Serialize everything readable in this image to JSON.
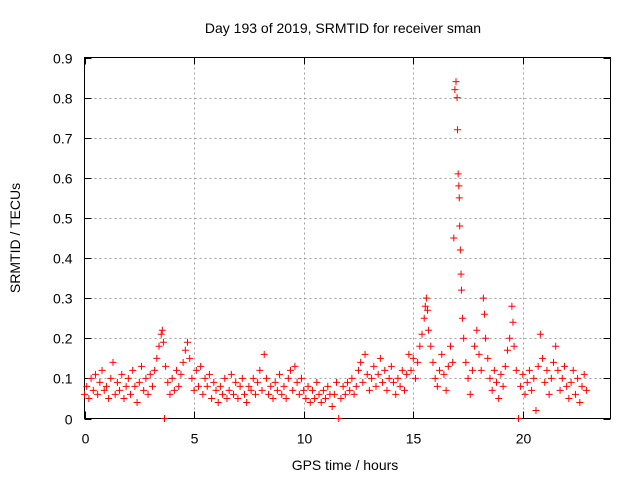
{
  "chart_data": {
    "type": "scatter",
    "title": "Day 193 of 2019, SRMTID for receiver sman",
    "xlabel": "GPS time / hours",
    "ylabel": "SRMTID / TECUs",
    "xlim": [
      0,
      24
    ],
    "ylim": [
      0,
      0.9
    ],
    "x_ticks": [
      0,
      5,
      10,
      15,
      20
    ],
    "x_tick_labels": [
      "0",
      "5",
      "10",
      "15",
      "20"
    ],
    "y_ticks": [
      0,
      0.1,
      0.2,
      0.3,
      0.4,
      0.5,
      0.6,
      0.7,
      0.8,
      0.9
    ],
    "y_tick_labels": [
      "0",
      "0.1",
      "0.2",
      "0.3",
      "0.4",
      "0.5",
      "0.6",
      "0.7",
      "0.8",
      "0.9"
    ],
    "grid": true,
    "marker": "+",
    "marker_color": "#ff0000",
    "series": [
      {
        "name": "SRMTID",
        "points": [
          [
            0.0,
            0.06
          ],
          [
            0.1,
            0.08
          ],
          [
            0.2,
            0.05
          ],
          [
            0.3,
            0.1
          ],
          [
            0.4,
            0.07
          ],
          [
            0.5,
            0.11
          ],
          [
            0.6,
            0.06
          ],
          [
            0.7,
            0.09
          ],
          [
            0.8,
            0.12
          ],
          [
            0.9,
            0.07
          ],
          [
            1.0,
            0.08
          ],
          [
            1.1,
            0.05
          ],
          [
            1.2,
            0.1
          ],
          [
            1.3,
            0.14
          ],
          [
            1.4,
            0.06
          ],
          [
            1.5,
            0.09
          ],
          [
            1.6,
            0.07
          ],
          [
            1.7,
            0.11
          ],
          [
            1.8,
            0.05
          ],
          [
            1.9,
            0.08
          ],
          [
            2.0,
            0.1
          ],
          [
            2.1,
            0.06
          ],
          [
            2.2,
            0.12
          ],
          [
            2.3,
            0.08
          ],
          [
            2.4,
            0.04
          ],
          [
            2.5,
            0.09
          ],
          [
            2.6,
            0.13
          ],
          [
            2.7,
            0.07
          ],
          [
            2.8,
            0.1
          ],
          [
            2.9,
            0.06
          ],
          [
            3.0,
            0.11
          ],
          [
            3.1,
            0.08
          ],
          [
            3.2,
            0.12
          ],
          [
            3.3,
            0.15
          ],
          [
            3.4,
            0.18
          ],
          [
            3.5,
            0.21
          ],
          [
            3.55,
            0.22
          ],
          [
            3.6,
            0.19
          ],
          [
            3.65,
            0.0
          ],
          [
            3.7,
            0.13
          ],
          [
            3.8,
            0.09
          ],
          [
            3.9,
            0.06
          ],
          [
            4.0,
            0.1
          ],
          [
            4.1,
            0.07
          ],
          [
            4.2,
            0.12
          ],
          [
            4.3,
            0.08
          ],
          [
            4.4,
            0.11
          ],
          [
            4.5,
            0.14
          ],
          [
            4.6,
            0.17
          ],
          [
            4.7,
            0.19
          ],
          [
            4.8,
            0.15
          ],
          [
            4.9,
            0.1
          ],
          [
            5.0,
            0.07
          ],
          [
            5.1,
            0.12
          ],
          [
            5.2,
            0.08
          ],
          [
            5.3,
            0.13
          ],
          [
            5.4,
            0.06
          ],
          [
            5.5,
            0.1
          ],
          [
            5.6,
            0.08
          ],
          [
            5.7,
            0.11
          ],
          [
            5.8,
            0.05
          ],
          [
            5.9,
            0.09
          ],
          [
            6.0,
            0.07
          ],
          [
            6.1,
            0.04
          ],
          [
            6.2,
            0.08
          ],
          [
            6.3,
            0.06
          ],
          [
            6.4,
            0.1
          ],
          [
            6.5,
            0.05
          ],
          [
            6.6,
            0.07
          ],
          [
            6.7,
            0.11
          ],
          [
            6.8,
            0.06
          ],
          [
            6.9,
            0.09
          ],
          [
            7.0,
            0.05
          ],
          [
            7.1,
            0.08
          ],
          [
            7.2,
            0.1
          ],
          [
            7.3,
            0.06
          ],
          [
            7.4,
            0.04
          ],
          [
            7.5,
            0.08
          ],
          [
            7.6,
            0.07
          ],
          [
            7.7,
            0.1
          ],
          [
            7.8,
            0.06
          ],
          [
            7.9,
            0.09
          ],
          [
            8.0,
            0.12
          ],
          [
            8.1,
            0.07
          ],
          [
            8.2,
            0.16
          ],
          [
            8.3,
            0.1
          ],
          [
            8.4,
            0.06
          ],
          [
            8.5,
            0.08
          ],
          [
            8.6,
            0.05
          ],
          [
            8.7,
            0.09
          ],
          [
            8.8,
            0.07
          ],
          [
            8.9,
            0.11
          ],
          [
            9.0,
            0.06
          ],
          [
            9.1,
            0.08
          ],
          [
            9.2,
            0.05
          ],
          [
            9.3,
            0.1
          ],
          [
            9.4,
            0.12
          ],
          [
            9.5,
            0.07
          ],
          [
            9.6,
            0.13
          ],
          [
            9.7,
            0.09
          ],
          [
            9.8,
            0.06
          ],
          [
            9.9,
            0.1
          ],
          [
            10.0,
            0.07
          ],
          [
            10.1,
            0.05
          ],
          [
            10.2,
            0.08
          ],
          [
            10.3,
            0.04
          ],
          [
            10.4,
            0.07
          ],
          [
            10.5,
            0.05
          ],
          [
            10.6,
            0.09
          ],
          [
            10.7,
            0.06
          ],
          [
            10.8,
            0.04
          ],
          [
            10.9,
            0.07
          ],
          [
            11.0,
            0.05
          ],
          [
            11.1,
            0.08
          ],
          [
            11.2,
            0.06
          ],
          [
            11.3,
            0.03
          ],
          [
            11.4,
            0.06
          ],
          [
            11.5,
            0.09
          ],
          [
            11.6,
            0.0
          ],
          [
            11.7,
            0.05
          ],
          [
            11.8,
            0.08
          ],
          [
            11.9,
            0.06
          ],
          [
            12.0,
            0.09
          ],
          [
            12.1,
            0.07
          ],
          [
            12.2,
            0.1
          ],
          [
            12.3,
            0.06
          ],
          [
            12.4,
            0.08
          ],
          [
            12.5,
            0.12
          ],
          [
            12.6,
            0.14
          ],
          [
            12.7,
            0.09
          ],
          [
            12.8,
            0.16
          ],
          [
            12.9,
            0.11
          ],
          [
            13.0,
            0.07
          ],
          [
            13.1,
            0.1
          ],
          [
            13.2,
            0.13
          ],
          [
            13.3,
            0.08
          ],
          [
            13.4,
            0.11
          ],
          [
            13.5,
            0.15
          ],
          [
            13.6,
            0.09
          ],
          [
            13.7,
            0.12
          ],
          [
            13.8,
            0.07
          ],
          [
            13.9,
            0.1
          ],
          [
            14.0,
            0.13
          ],
          [
            14.1,
            0.09
          ],
          [
            14.2,
            0.06
          ],
          [
            14.3,
            0.1
          ],
          [
            14.4,
            0.08
          ],
          [
            14.5,
            0.12
          ],
          [
            14.6,
            0.07
          ],
          [
            14.7,
            0.11
          ],
          [
            14.8,
            0.16
          ],
          [
            14.9,
            0.12
          ],
          [
            15.0,
            0.15
          ],
          [
            15.1,
            0.1
          ],
          [
            15.2,
            0.14
          ],
          [
            15.3,
            0.18
          ],
          [
            15.4,
            0.21
          ],
          [
            15.5,
            0.25
          ],
          [
            15.55,
            0.28
          ],
          [
            15.6,
            0.3
          ],
          [
            15.65,
            0.27
          ],
          [
            15.7,
            0.22
          ],
          [
            15.8,
            0.18
          ],
          [
            15.9,
            0.14
          ],
          [
            16.0,
            0.1
          ],
          [
            16.1,
            0.08
          ],
          [
            16.2,
            0.12
          ],
          [
            16.3,
            0.16
          ],
          [
            16.4,
            0.11
          ],
          [
            16.5,
            0.07
          ],
          [
            16.6,
            0.13
          ],
          [
            16.7,
            0.18
          ],
          [
            16.8,
            0.14
          ],
          [
            16.85,
            0.45
          ],
          [
            16.9,
            0.82
          ],
          [
            16.95,
            0.84
          ],
          [
            17.0,
            0.8
          ],
          [
            17.02,
            0.72
          ],
          [
            17.05,
            0.61
          ],
          [
            17.08,
            0.58
          ],
          [
            17.1,
            0.55
          ],
          [
            17.12,
            0.48
          ],
          [
            17.15,
            0.42
          ],
          [
            17.18,
            0.36
          ],
          [
            17.2,
            0.32
          ],
          [
            17.25,
            0.25
          ],
          [
            17.3,
            0.2
          ],
          [
            17.4,
            0.14
          ],
          [
            17.5,
            0.1
          ],
          [
            17.6,
            0.06
          ],
          [
            17.7,
            0.12
          ],
          [
            17.8,
            0.18
          ],
          [
            17.9,
            0.22
          ],
          [
            18.0,
            0.16
          ],
          [
            18.1,
            0.12
          ],
          [
            18.2,
            0.3
          ],
          [
            18.25,
            0.26
          ],
          [
            18.3,
            0.2
          ],
          [
            18.4,
            0.15
          ],
          [
            18.5,
            0.1
          ],
          [
            18.6,
            0.07
          ],
          [
            18.7,
            0.12
          ],
          [
            18.8,
            0.09
          ],
          [
            18.9,
            0.05
          ],
          [
            19.0,
            0.11
          ],
          [
            19.1,
            0.08
          ],
          [
            19.2,
            0.13
          ],
          [
            19.3,
            0.17
          ],
          [
            19.4,
            0.2
          ],
          [
            19.5,
            0.28
          ],
          [
            19.55,
            0.24
          ],
          [
            19.6,
            0.18
          ],
          [
            19.7,
            0.12
          ],
          [
            19.8,
            0.0
          ],
          [
            19.9,
            0.08
          ],
          [
            20.0,
            0.11
          ],
          [
            20.1,
            0.06
          ],
          [
            20.2,
            0.09
          ],
          [
            20.3,
            0.12
          ],
          [
            20.4,
            0.07
          ],
          [
            20.5,
            0.1
          ],
          [
            20.6,
            0.02
          ],
          [
            20.7,
            0.13
          ],
          [
            20.8,
            0.21
          ],
          [
            20.9,
            0.15
          ],
          [
            21.0,
            0.09
          ],
          [
            21.1,
            0.12
          ],
          [
            21.2,
            0.06
          ],
          [
            21.3,
            0.1
          ],
          [
            21.4,
            0.14
          ],
          [
            21.5,
            0.18
          ],
          [
            21.6,
            0.12
          ],
          [
            21.7,
            0.07
          ],
          [
            21.8,
            0.1
          ],
          [
            21.9,
            0.13
          ],
          [
            22.0,
            0.08
          ],
          [
            22.1,
            0.05
          ],
          [
            22.2,
            0.09
          ],
          [
            22.3,
            0.12
          ],
          [
            22.4,
            0.06
          ],
          [
            22.5,
            0.1
          ],
          [
            22.6,
            0.04
          ],
          [
            22.7,
            0.08
          ],
          [
            22.8,
            0.11
          ],
          [
            22.9,
            0.07
          ]
        ]
      }
    ]
  }
}
